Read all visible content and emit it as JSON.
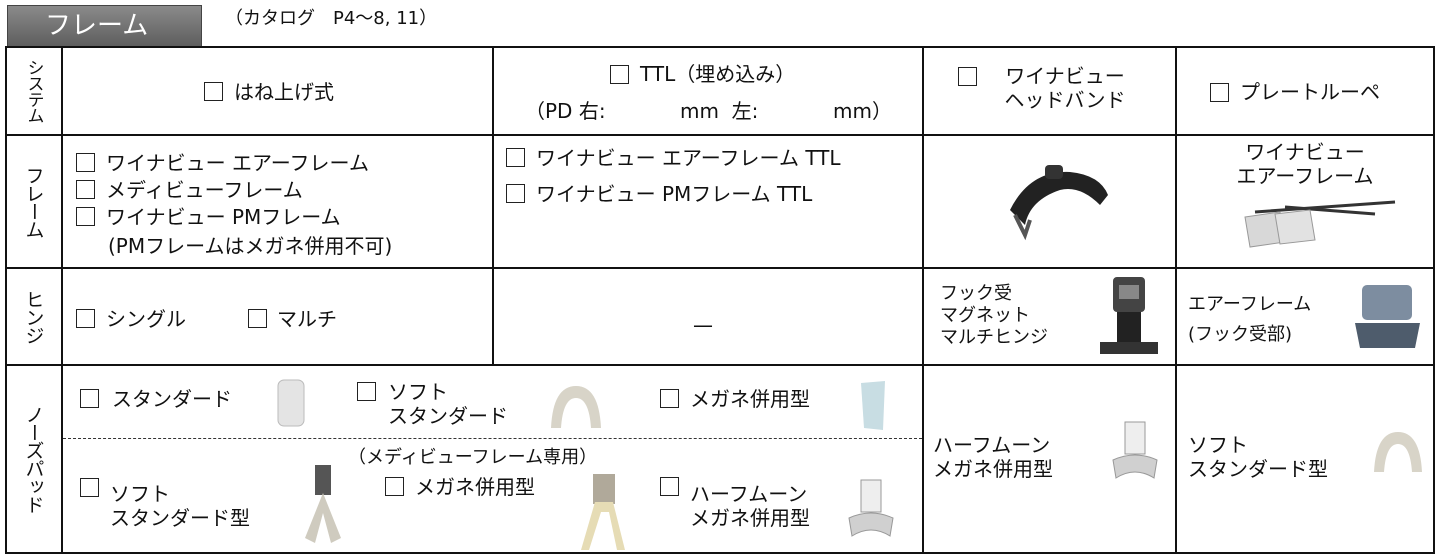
{
  "header": {
    "title": "フレーム",
    "catalog": "（カタログ　P4〜8, 11）"
  },
  "row_labels": [
    "システム",
    "フレーム",
    "ヒンジ",
    "ノーズパッド"
  ],
  "system": {
    "flip_up": "はね上げ式",
    "ttl": "TTL（埋め込み）",
    "pd_prefix": "（PD 右:",
    "pd_mm1": "mm  左:",
    "pd_mm2": "mm）",
    "headband": "ワイナビュー\nヘッドバンド",
    "plate_loupe": "プレートルーペ"
  },
  "frame": {
    "flip_up_options": [
      "ワイナビュー エアーフレーム",
      "メディビューフレーム",
      "ワイナビュー PMフレーム"
    ],
    "flip_up_note": "(PMフレームはメガネ併用不可)",
    "ttl_options": [
      "ワイナビュー エアーフレーム TTL",
      "ワイナビュー PMフレーム TTL"
    ],
    "plate_loupe": "ワイナビュー\nエアーフレーム"
  },
  "hinge": {
    "options": [
      "シングル",
      "マルチ"
    ],
    "ttl": "—",
    "headband": "フック受\nマグネット\nマルチヒンジ",
    "plate_loupe": "エアーフレーム\n(フック受部)"
  },
  "nose_pad": {
    "upper": [
      "スタンダード",
      "ソフト\nスタンダード",
      "メガネ併用型"
    ],
    "medi_note": "（メディビューフレーム専用）",
    "lower": [
      "ソフト\nスタンダード型",
      "メガネ併用型",
      "ハーフムーン\nメガネ併用型"
    ],
    "headband": "ハーフムーン\nメガネ併用型",
    "plate_loupe": "ソフト\nスタンダード型"
  }
}
